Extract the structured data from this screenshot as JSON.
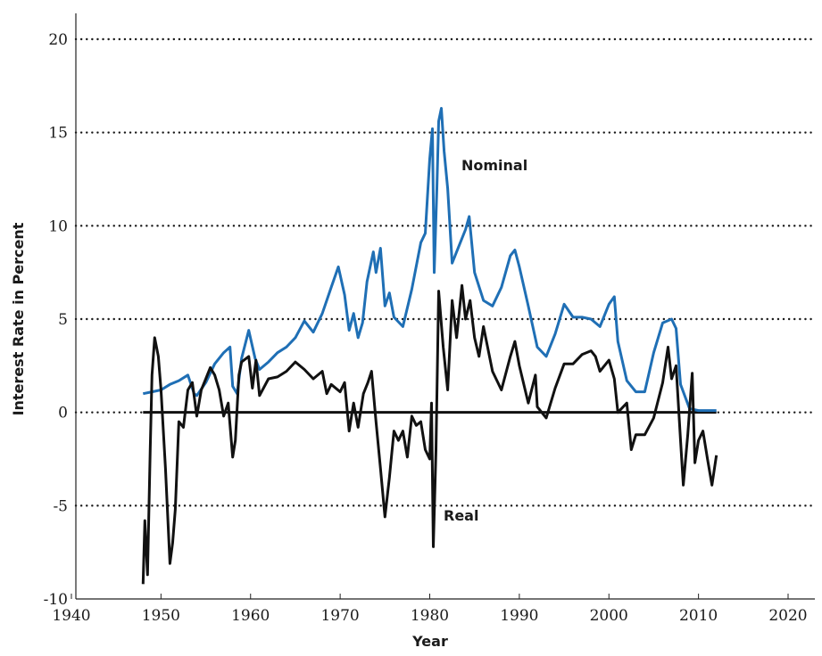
{
  "chart_data": {
    "type": "line",
    "xlabel": "Year",
    "ylabel": "Interest Rate in Percent",
    "xlim": [
      1940,
      2023
    ],
    "ylim": [
      -10,
      21.5
    ],
    "x_ticks": [
      1940,
      1950,
      1960,
      1970,
      1980,
      1990,
      2000,
      2010,
      2020
    ],
    "y_ticks": [
      -10,
      -5,
      0,
      5,
      10,
      15,
      20
    ],
    "grid": "horizontal dotted",
    "annotations": [
      "Nominal",
      "Real"
    ],
    "zero_line": 0,
    "series": [
      {
        "name": "Nominal",
        "color": "#1f6fb5",
        "points": [
          [
            1948,
            1.0
          ],
          [
            1949,
            1.1
          ],
          [
            1950,
            1.2
          ],
          [
            1951,
            1.5
          ],
          [
            1952,
            1.7
          ],
          [
            1953,
            2.0
          ],
          [
            1953.7,
            1.0
          ],
          [
            1954,
            0.9
          ],
          [
            1955,
            1.6
          ],
          [
            1956,
            2.6
          ],
          [
            1957,
            3.2
          ],
          [
            1957.7,
            3.5
          ],
          [
            1958,
            1.4
          ],
          [
            1958.5,
            1.0
          ],
          [
            1959,
            2.9
          ],
          [
            1959.8,
            4.4
          ],
          [
            1960.5,
            2.9
          ],
          [
            1961,
            2.3
          ],
          [
            1962,
            2.7
          ],
          [
            1963,
            3.2
          ],
          [
            1964,
            3.5
          ],
          [
            1965,
            4.0
          ],
          [
            1966,
            4.9
          ],
          [
            1967,
            4.3
          ],
          [
            1968,
            5.3
          ],
          [
            1969,
            6.7
          ],
          [
            1969.8,
            7.8
          ],
          [
            1970.5,
            6.3
          ],
          [
            1971,
            4.4
          ],
          [
            1971.5,
            5.3
          ],
          [
            1972,
            4.0
          ],
          [
            1972.5,
            4.8
          ],
          [
            1973,
            7.0
          ],
          [
            1973.7,
            8.6
          ],
          [
            1974,
            7.5
          ],
          [
            1974.5,
            8.8
          ],
          [
            1975,
            5.7
          ],
          [
            1975.5,
            6.4
          ],
          [
            1976,
            5.1
          ],
          [
            1977,
            4.6
          ],
          [
            1978,
            6.6
          ],
          [
            1979,
            9.1
          ],
          [
            1979.5,
            9.6
          ],
          [
            1980,
            13.6
          ],
          [
            1980.3,
            15.2
          ],
          [
            1980.5,
            7.5
          ],
          [
            1980.8,
            12.0
          ],
          [
            1981,
            15.6
          ],
          [
            1981.3,
            16.3
          ],
          [
            1981.6,
            14.0
          ],
          [
            1982,
            12.0
          ],
          [
            1982.5,
            8.0
          ],
          [
            1983,
            8.6
          ],
          [
            1984,
            9.8
          ],
          [
            1984.4,
            10.5
          ],
          [
            1985,
            7.5
          ],
          [
            1986,
            6.0
          ],
          [
            1987,
            5.7
          ],
          [
            1988,
            6.7
          ],
          [
            1989,
            8.4
          ],
          [
            1989.5,
            8.7
          ],
          [
            1990,
            7.8
          ],
          [
            1991,
            5.7
          ],
          [
            1992,
            3.5
          ],
          [
            1993,
            3.0
          ],
          [
            1994,
            4.2
          ],
          [
            1995,
            5.8
          ],
          [
            1996,
            5.1
          ],
          [
            1997,
            5.1
          ],
          [
            1998,
            5.0
          ],
          [
            1999,
            4.6
          ],
          [
            2000,
            5.8
          ],
          [
            2000.6,
            6.2
          ],
          [
            2001,
            3.8
          ],
          [
            2002,
            1.7
          ],
          [
            2003,
            1.1
          ],
          [
            2004,
            1.1
          ],
          [
            2005,
            3.2
          ],
          [
            2006,
            4.8
          ],
          [
            2007,
            5.0
          ],
          [
            2007.5,
            4.5
          ],
          [
            2008,
            1.5
          ],
          [
            2009,
            0.2
          ],
          [
            2010,
            0.1
          ],
          [
            2011,
            0.1
          ],
          [
            2012,
            0.1
          ]
        ]
      },
      {
        "name": "Real",
        "color": "#111111",
        "points": [
          [
            1948,
            -9.2
          ],
          [
            1948.2,
            -5.8
          ],
          [
            1948.5,
            -8.7
          ],
          [
            1948.8,
            -2.0
          ],
          [
            1949,
            2.0
          ],
          [
            1949.3,
            4.0
          ],
          [
            1949.7,
            3.0
          ],
          [
            1950,
            1.2
          ],
          [
            1950.5,
            -3.0
          ],
          [
            1951,
            -8.1
          ],
          [
            1951.3,
            -7.0
          ],
          [
            1951.6,
            -5.2
          ],
          [
            1952,
            -0.5
          ],
          [
            1952.5,
            -0.8
          ],
          [
            1953,
            1.2
          ],
          [
            1953.5,
            1.6
          ],
          [
            1954,
            -0.2
          ],
          [
            1954.5,
            1.2
          ],
          [
            1955,
            1.8
          ],
          [
            1955.5,
            2.4
          ],
          [
            1956,
            2.0
          ],
          [
            1956.5,
            1.2
          ],
          [
            1957,
            -0.2
          ],
          [
            1957.5,
            0.5
          ],
          [
            1958,
            -2.4
          ],
          [
            1958.3,
            -1.5
          ],
          [
            1958.7,
            2.0
          ],
          [
            1959,
            2.7
          ],
          [
            1959.8,
            3.0
          ],
          [
            1960.2,
            1.3
          ],
          [
            1960.6,
            2.8
          ],
          [
            1961,
            0.9
          ],
          [
            1962,
            1.8
          ],
          [
            1963,
            1.9
          ],
          [
            1964,
            2.2
          ],
          [
            1965,
            2.7
          ],
          [
            1966,
            2.3
          ],
          [
            1967,
            1.8
          ],
          [
            1968,
            2.2
          ],
          [
            1968.5,
            1.0
          ],
          [
            1969,
            1.5
          ],
          [
            1970,
            1.1
          ],
          [
            1970.5,
            1.6
          ],
          [
            1971,
            -1.0
          ],
          [
            1971.5,
            0.5
          ],
          [
            1972,
            -0.8
          ],
          [
            1972.6,
            1.0
          ],
          [
            1973.1,
            1.6
          ],
          [
            1973.5,
            2.2
          ],
          [
            1974,
            -0.5
          ],
          [
            1974.5,
            -3.0
          ],
          [
            1975,
            -5.6
          ],
          [
            1975.5,
            -3.5
          ],
          [
            1976,
            -1.0
          ],
          [
            1976.5,
            -1.5
          ],
          [
            1977,
            -1.0
          ],
          [
            1977.5,
            -2.4
          ],
          [
            1978,
            -0.2
          ],
          [
            1978.5,
            -0.7
          ],
          [
            1979,
            -0.5
          ],
          [
            1979.5,
            -2.0
          ],
          [
            1980,
            -2.5
          ],
          [
            1980.2,
            0.5
          ],
          [
            1980.4,
            -7.2
          ],
          [
            1980.7,
            -2.0
          ],
          [
            1981,
            6.5
          ],
          [
            1981.5,
            3.5
          ],
          [
            1982,
            1.2
          ],
          [
            1982.5,
            6.0
          ],
          [
            1983,
            4.0
          ],
          [
            1983.6,
            6.8
          ],
          [
            1984,
            5.0
          ],
          [
            1984.5,
            6.0
          ],
          [
            1985,
            4.0
          ],
          [
            1985.5,
            3.0
          ],
          [
            1986,
            4.6
          ],
          [
            1987,
            2.2
          ],
          [
            1988,
            1.2
          ],
          [
            1989,
            3.0
          ],
          [
            1989.5,
            3.8
          ],
          [
            1990,
            2.5
          ],
          [
            1991,
            0.5
          ],
          [
            1991.8,
            2.0
          ],
          [
            1992,
            0.3
          ],
          [
            1993,
            -0.3
          ],
          [
            1994,
            1.3
          ],
          [
            1995,
            2.6
          ],
          [
            1996,
            2.6
          ],
          [
            1997,
            3.1
          ],
          [
            1998,
            3.3
          ],
          [
            1998.5,
            3.0
          ],
          [
            1999,
            2.2
          ],
          [
            2000,
            2.8
          ],
          [
            2000.6,
            1.8
          ],
          [
            2001,
            0.0
          ],
          [
            2002,
            0.5
          ],
          [
            2002.5,
            -2.0
          ],
          [
            2003,
            -1.2
          ],
          [
            2004,
            -1.2
          ],
          [
            2005,
            -0.3
          ],
          [
            2006,
            1.6
          ],
          [
            2006.6,
            3.5
          ],
          [
            2007,
            1.8
          ],
          [
            2007.5,
            2.5
          ],
          [
            2008,
            -1.5
          ],
          [
            2008.3,
            -3.9
          ],
          [
            2008.8,
            -1.2
          ],
          [
            2009.3,
            2.1
          ],
          [
            2009.6,
            -2.7
          ],
          [
            2010,
            -1.5
          ],
          [
            2010.5,
            -1.0
          ],
          [
            2011,
            -2.5
          ],
          [
            2011.5,
            -3.9
          ],
          [
            2012,
            -2.3
          ]
        ]
      }
    ]
  }
}
